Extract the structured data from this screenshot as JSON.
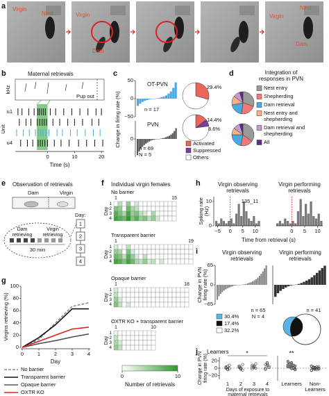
{
  "a": {
    "label": "a",
    "photos": [
      {
        "labels": [
          "Virgin",
          "Nest"
        ]
      },
      {
        "labels": [
          "Virgin",
          "Dam"
        ]
      },
      {
        "labels": []
      },
      {
        "labels": []
      },
      {
        "labels": [
          "Nest",
          "Virgin",
          "Dam"
        ]
      }
    ]
  },
  "b": {
    "label": "b",
    "title": "Maternal retrievals",
    "freq_label": "kHz",
    "pup_out": "Pup out",
    "ylabel": "Unit",
    "xlabel": "Time (s)",
    "xlim": [
      -12,
      21
    ],
    "xticks": [
      0,
      10,
      20
    ],
    "shade": [
      -4,
      0
    ],
    "rows": [
      {
        "name": "u1",
        "color": "#111111",
        "spikes": [
          -11,
          -9.5,
          -7,
          -5,
          -3.6,
          -3,
          -2.2,
          -1.5,
          -0.8,
          1,
          3,
          6,
          9,
          12,
          15,
          18,
          20
        ]
      },
      {
        "color": "#111111",
        "spikes": [
          -10.5,
          -8,
          -6.2,
          -3.8,
          -2.9,
          -2,
          -1.2,
          -0.4,
          2,
          4.5,
          7.5,
          10,
          13,
          16.5,
          19
        ]
      },
      {
        "color": "#4aa9e0",
        "spikes": [
          -11.5,
          -9,
          -6.8,
          -4.5,
          -3.3,
          -2.5,
          -1.7,
          -0.6,
          0.5,
          3.5,
          5.5,
          8.5,
          11,
          14,
          17,
          19.5
        ]
      },
      {
        "name": "u4",
        "color": "#111111",
        "spikes": [
          -10,
          -7.5,
          -5.5,
          -3.5,
          -2.7,
          -1.9,
          -1,
          0,
          2.5,
          5,
          8,
          11.5,
          14.5,
          17.5,
          20.5
        ]
      }
    ]
  },
  "c": {
    "label": "c",
    "ylabel": "Change in firing rate (%)",
    "plots": [
      {
        "name": "OT-PVN",
        "n_label": "n = 17",
        "color": "#4aa9e0",
        "ylim": [
          -50,
          50
        ],
        "yticks": [
          50,
          0,
          {
            "value": -50,
            "label": "−50"
          }
        ],
        "values": [
          -20,
          -14,
          -9,
          -6,
          -4,
          -2,
          -1,
          0,
          1,
          2,
          4,
          6,
          9,
          14,
          20,
          30,
          45
        ],
        "pie": [
          29.4,
          0,
          70.6
        ],
        "pie_labels": [
          "29.4%"
        ]
      },
      {
        "name": "PVN",
        "n_label": "n = 69",
        "N_label": "N = 5",
        "color": "#555555",
        "ylim": [
          -50,
          50
        ],
        "yticks": [
          0
        ],
        "values": [
          -45,
          -35,
          -28,
          -22,
          -17,
          -13,
          -10,
          -7,
          -5,
          -3,
          -2,
          -1,
          0,
          0,
          1,
          2,
          3,
          5,
          7,
          9,
          12,
          16,
          22,
          30
        ],
        "pie": [
          14.4,
          8.6,
          77
        ],
        "pie_labels": [
          "14.4%",
          "8.6%"
        ]
      }
    ],
    "legend": [
      {
        "name": "Activated",
        "color": "#e8665a"
      },
      {
        "name": "Suppressed",
        "color": "#7b3f98"
      },
      {
        "name": "Others",
        "color": "#ffffff"
      }
    ]
  },
  "d": {
    "label": "d",
    "title": [
      "Integration of",
      "responses in PVN"
    ],
    "legend": [
      {
        "lines": [
          "Nest entry"
        ],
        "color": "#9a9a9a"
      },
      {
        "lines": [
          "Shepherding"
        ],
        "color": "#f07878"
      },
      {
        "lines": [
          "Dam retrieval"
        ],
        "color": "#4aa9e0"
      },
      {
        "lines": [
          "Nest entry and",
          "shepherding"
        ],
        "color": "#f4b08a"
      },
      {
        "lines": [
          "Dam retrieval and",
          "shepherding"
        ],
        "color": "#c59ad0"
      },
      {
        "lines": [
          "All"
        ],
        "color": "#5b2c83"
      }
    ],
    "pies": [
      [
        30,
        22,
        20,
        13,
        10,
        5
      ],
      [
        35,
        18,
        22,
        10,
        10,
        5
      ]
    ]
  },
  "e": {
    "label": "e",
    "title": "Observation of retrievals",
    "dam": "Dam",
    "virgin": "Virgin",
    "day_label": "Day:",
    "days": [
      "1",
      "2",
      "3",
      "4"
    ],
    "dam_retrieving": [
      "Dam",
      "retrieving"
    ],
    "virgin_retrieving": [
      "Virgin",
      "retrieving"
    ],
    "duration": "30 min"
  },
  "f": {
    "label": "f",
    "title": "Individual virgin females",
    "day_label": "Day",
    "rows": [
      "1",
      "2",
      "3",
      "4"
    ],
    "groups": [
      {
        "name": "No barrier",
        "first": 1,
        "last": 15,
        "counts": [
          [
            0,
            3,
            0,
            5,
            0,
            2,
            0,
            0,
            0,
            0,
            0,
            0,
            0,
            0,
            0
          ],
          [
            6,
            5,
            0,
            7,
            4,
            3,
            0,
            0,
            0,
            0,
            0,
            0,
            0,
            0,
            0
          ],
          [
            8,
            6,
            4,
            9,
            5,
            6,
            3,
            2,
            0,
            4,
            0,
            0,
            0,
            0,
            0
          ],
          [
            9,
            8,
            7,
            10,
            6,
            8,
            5,
            6,
            3,
            5,
            2,
            0,
            0,
            0,
            0
          ]
        ]
      },
      {
        "name": "Transparent barrier",
        "first": 1,
        "last": 19,
        "counts": [
          [
            2,
            0,
            0,
            3,
            0,
            0,
            0,
            0,
            0,
            0,
            0,
            0,
            0,
            0,
            0,
            0,
            0,
            0,
            0
          ],
          [
            5,
            4,
            0,
            6,
            2,
            0,
            0,
            0,
            0,
            0,
            0,
            0,
            0,
            0,
            0,
            0,
            0,
            0,
            0
          ],
          [
            7,
            6,
            3,
            8,
            5,
            2,
            0,
            3,
            0,
            0,
            0,
            0,
            0,
            0,
            0,
            0,
            0,
            0,
            0
          ],
          [
            9,
            8,
            6,
            9,
            7,
            4,
            3,
            5,
            2,
            3,
            0,
            2,
            0,
            0,
            0,
            0,
            0,
            0,
            0
          ]
        ]
      },
      {
        "name": "Opaque barrier",
        "first": 1,
        "last": 18,
        "counts": [
          [
            2,
            0,
            0,
            0,
            0,
            0,
            0,
            0,
            0,
            0,
            0,
            0,
            0,
            0,
            0,
            0,
            0,
            0
          ],
          [
            3,
            0,
            0,
            0,
            0,
            0,
            0,
            0,
            0,
            0,
            0,
            0,
            0,
            0,
            0,
            0,
            0,
            0
          ],
          [
            5,
            2,
            0,
            0,
            0,
            0,
            0,
            0,
            0,
            0,
            0,
            0,
            0,
            0,
            0,
            0,
            0,
            0
          ],
          [
            6,
            3,
            0,
            2,
            0,
            0,
            0,
            0,
            0,
            0,
            0,
            0,
            0,
            0,
            0,
            0,
            0,
            0
          ]
        ]
      },
      {
        "name": "OXTR KO + transparent barrier",
        "first": 1,
        "last": 10,
        "counts": [
          [
            1,
            0,
            0,
            0,
            0,
            0,
            0,
            0,
            0,
            0
          ],
          [
            3,
            0,
            0,
            0,
            0,
            0,
            0,
            0,
            0,
            0
          ],
          [
            4,
            2,
            0,
            0,
            0,
            0,
            0,
            0,
            0,
            0
          ],
          [
            5,
            3,
            0,
            0,
            0,
            0,
            0,
            0,
            0,
            0
          ]
        ]
      }
    ],
    "colorbar": {
      "range": [
        0,
        10
      ],
      "ticks": [
        0,
        10
      ],
      "label": "Number of retrievals",
      "colors": [
        "#ffffff",
        "#2e9a2e"
      ]
    }
  },
  "g": {
    "label": "g",
    "ylabel": "Virgins retrieving (%)",
    "xlabel": "Day",
    "x": [
      0,
      1,
      2,
      3,
      4
    ],
    "xlim": [
      0,
      4
    ],
    "xticks": [
      0,
      1,
      2,
      3,
      4
    ],
    "ylim": [
      0,
      100
    ],
    "yticks": [
      0,
      20,
      40,
      60,
      80,
      100
    ],
    "series": [
      {
        "name": "No barrier",
        "color": "#888888",
        "dashed": true,
        "values": [
          0,
          13,
          40,
          67,
          73
        ]
      },
      {
        "name": "Transparent barrier",
        "color": "#111111",
        "values": [
          0,
          16,
          37,
          63,
          63
        ]
      },
      {
        "name": "Opaque barrier",
        "color": "#555555",
        "values": [
          0,
          6,
          11,
          17,
          22
        ]
      },
      {
        "name": "OXTR KO",
        "color": "#e02020",
        "values": [
          0,
          10,
          20,
          30,
          33
        ]
      }
    ]
  },
  "h": {
    "label": "h",
    "ylabel": [
      "Spiking rate",
      "(Hz)"
    ],
    "xlabel": "Time from retrieval (s)",
    "unit_id": "135_11",
    "ylim": [
      0,
      12
    ],
    "yticks": [
      0,
      10
    ],
    "plots": [
      {
        "title": [
          "Virgin observing",
          "retrievals"
        ],
        "xlim": [
          -6,
          12
        ],
        "xticks": [
          {
            "value": -5,
            "label": "−5"
          },
          0,
          5,
          10
        ],
        "bins": [
          -6,
          -5,
          -4,
          -3,
          -2,
          -1,
          0,
          1,
          2,
          3,
          4,
          5,
          6,
          7,
          8,
          9,
          10,
          11,
          12
        ],
        "counts": [
          2,
          1,
          3,
          2,
          1,
          2,
          3,
          1,
          5,
          9,
          4,
          10,
          6,
          3,
          2,
          4,
          1,
          2
        ]
      },
      {
        "title": [
          "Virgin performing",
          "retrievals"
        ],
        "xlim": [
          -6,
          12
        ],
        "xticks": [
          0,
          5,
          10
        ],
        "bins": [
          -6,
          -5,
          -4,
          -3,
          -2,
          -1,
          0,
          1,
          2,
          3,
          4,
          5,
          6,
          7,
          8,
          9,
          10,
          11,
          12
        ],
        "counts": [
          1,
          2,
          1,
          3,
          2,
          1,
          2,
          1,
          6,
          11,
          4,
          9,
          5,
          10,
          4,
          3,
          5,
          2
        ]
      }
    ]
  },
  "i": {
    "label": "i",
    "ylabel": [
      "Change in PVN",
      "firing rate (%)"
    ],
    "plots": [
      {
        "title": [
          "Virgin observing",
          "retrievals"
        ],
        "n_label": "n = 65",
        "N_label": "N = 4",
        "color": "#888888",
        "ylim": [
          -65,
          65
        ],
        "yticks": [
          65,
          0,
          {
            "value": -65,
            "label": "−65"
          }
        ],
        "values": [
          -50,
          -38,
          -30,
          -24,
          -19,
          -15,
          -12,
          -9,
          -7,
          -5,
          -3,
          -2,
          -1,
          0,
          0,
          1,
          2,
          3,
          5,
          7,
          9,
          12,
          15,
          19,
          24,
          30,
          37,
          45,
          55,
          65
        ]
      },
      {
        "title": [
          "Virgin performing",
          "retrievals"
        ],
        "n_label": "n = 41",
        "color": "#333333",
        "ylim": [
          -65,
          65
        ],
        "yticks": [],
        "values": [
          -40,
          -28,
          -20,
          -14,
          -9,
          -5,
          -2,
          0,
          1,
          3,
          6,
          10,
          14,
          19,
          25,
          32,
          40,
          48,
          56,
          64
        ]
      }
    ],
    "legend": [
      {
        "label": "30.4%",
        "color": "#5ab4e5"
      },
      {
        "label": "17.4%",
        "color": "#111111"
      },
      {
        "label": "32.2%",
        "color": "#ffffff"
      }
    ]
  },
  "j": {
    "label": "j",
    "title": "Learners",
    "ylabel": [
      "Change in PVN",
      "firing rate (%)"
    ],
    "xlabel": [
      "Days of exposure to",
      "maternal retrievals"
    ],
    "day_sig": "*",
    "group_sig": "**",
    "ylim": [
      -30,
      30
    ],
    "yticks": [
      {
        "value": -20,
        "label": "−20"
      },
      0,
      20
    ],
    "days": [
      "1",
      "2",
      "3",
      "4"
    ],
    "day_values": [
      [
        3,
        -2,
        8,
        0,
        5,
        -1,
        2,
        -4
      ],
      [
        6,
        -3,
        10,
        2,
        1,
        -5,
        4,
        0
      ],
      [
        8,
        2,
        12,
        -2,
        5,
        0,
        3,
        6
      ],
      [
        10,
        15,
        5,
        -3,
        8,
        2,
        0,
        12
      ]
    ],
    "groups": [
      {
        "lines": [
          "Learners"
        ],
        "values": [
          18,
          12,
          10,
          8,
          6,
          5,
          3,
          2,
          0,
          -2,
          4,
          7,
          15,
          1,
          -4,
          9,
          11,
          -1
        ]
      },
      {
        "lines": [
          "Non-",
          "Learners"
        ],
        "values": [
          5,
          3,
          2,
          0,
          -2,
          -5,
          1,
          -3,
          4,
          -1,
          -6,
          2,
          0,
          -4,
          3,
          6,
          -2,
          1
        ]
      }
    ]
  }
}
